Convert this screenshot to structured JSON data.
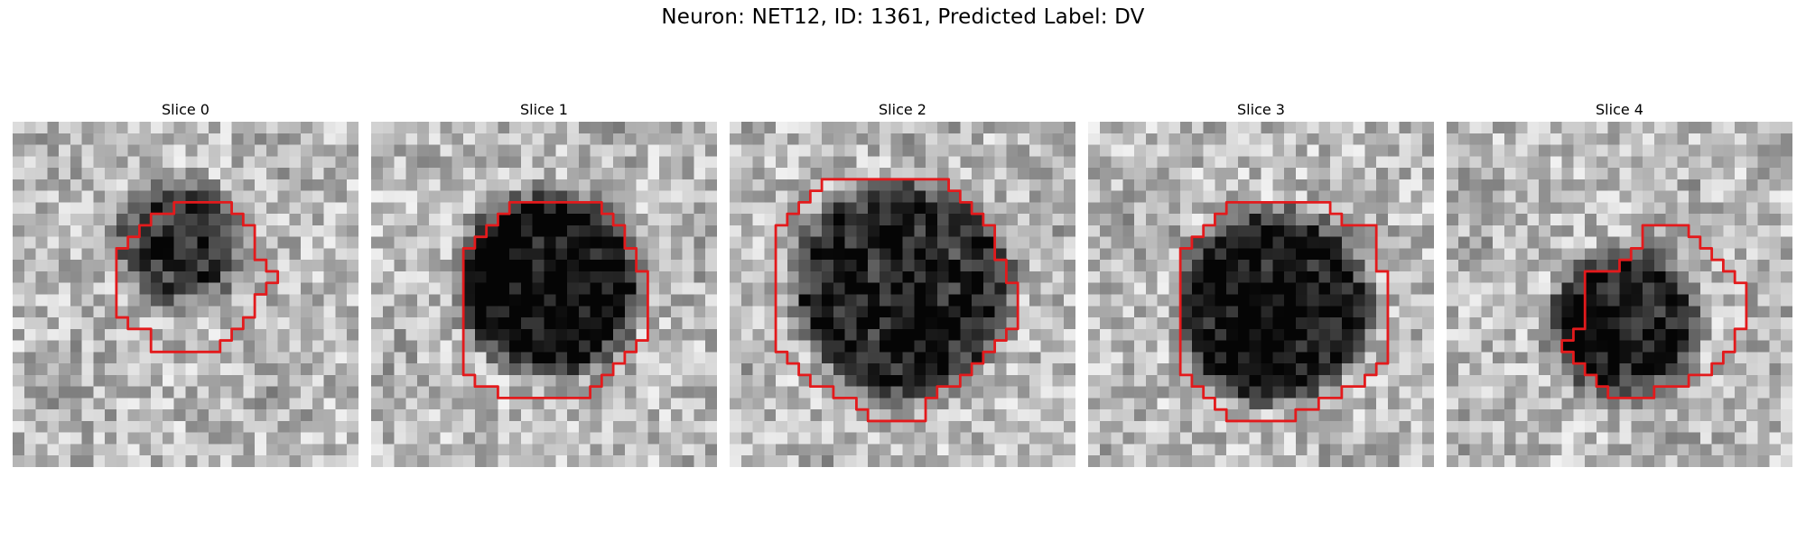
{
  "figure": {
    "title": "Neuron: NET12, ID: 1361, Predicted Label: DV"
  },
  "colormap": "gray",
  "contour_color": "#e31a1c",
  "grid_size": 30,
  "panels": [
    {
      "title": "Slice 0",
      "blob": {
        "center": [
          14.5,
          10.5
        ],
        "radius": 5.5,
        "darkness": 0.5
      },
      "contour": [
        [
          14,
          7
        ],
        [
          19,
          7
        ],
        [
          19,
          8
        ],
        [
          20,
          8
        ],
        [
          20,
          9
        ],
        [
          21,
          9
        ],
        [
          21,
          12
        ],
        [
          22,
          12
        ],
        [
          22,
          13
        ],
        [
          23,
          13
        ],
        [
          23,
          14
        ],
        [
          22,
          14
        ],
        [
          22,
          15
        ],
        [
          21,
          15
        ],
        [
          21,
          17
        ],
        [
          20,
          17
        ],
        [
          20,
          18
        ],
        [
          19,
          18
        ],
        [
          19,
          19
        ],
        [
          18,
          19
        ],
        [
          18,
          20
        ],
        [
          12,
          20
        ],
        [
          12,
          18
        ],
        [
          10,
          18
        ],
        [
          10,
          17
        ],
        [
          9,
          17
        ],
        [
          9,
          11
        ],
        [
          10,
          11
        ],
        [
          10,
          10
        ],
        [
          11,
          10
        ],
        [
          11,
          9
        ],
        [
          12,
          9
        ],
        [
          12,
          8
        ],
        [
          14,
          8
        ]
      ]
    },
    {
      "title": "Slice 1",
      "blob": {
        "center": [
          15.5,
          14.0
        ],
        "radius": 8.0,
        "darkness": 0.72
      },
      "contour": [
        [
          12,
          7
        ],
        [
          20,
          7
        ],
        [
          20,
          8
        ],
        [
          21,
          8
        ],
        [
          21,
          9
        ],
        [
          22,
          9
        ],
        [
          22,
          11
        ],
        [
          23,
          11
        ],
        [
          23,
          13
        ],
        [
          24,
          13
        ],
        [
          24,
          19
        ],
        [
          23,
          19
        ],
        [
          23,
          20
        ],
        [
          22,
          20
        ],
        [
          22,
          21
        ],
        [
          21,
          21
        ],
        [
          21,
          22
        ],
        [
          20,
          22
        ],
        [
          20,
          23
        ],
        [
          19,
          23
        ],
        [
          19,
          24
        ],
        [
          11,
          24
        ],
        [
          11,
          23
        ],
        [
          9,
          23
        ],
        [
          9,
          22
        ],
        [
          8,
          22
        ],
        [
          8,
          11
        ],
        [
          9,
          11
        ],
        [
          9,
          10
        ],
        [
          10,
          10
        ],
        [
          10,
          9
        ],
        [
          11,
          9
        ],
        [
          11,
          8
        ],
        [
          12,
          8
        ]
      ]
    },
    {
      "title": "Slice 2",
      "blob": {
        "center": [
          15.0,
          14.5
        ],
        "radius": 9.5,
        "darkness": 0.62
      },
      "contour": [
        [
          8,
          5
        ],
        [
          19,
          5
        ],
        [
          19,
          6
        ],
        [
          20,
          6
        ],
        [
          20,
          7
        ],
        [
          21,
          7
        ],
        [
          21,
          8
        ],
        [
          22,
          8
        ],
        [
          22,
          9
        ],
        [
          23,
          9
        ],
        [
          23,
          12
        ],
        [
          24,
          12
        ],
        [
          24,
          14
        ],
        [
          25,
          14
        ],
        [
          25,
          18
        ],
        [
          24,
          18
        ],
        [
          24,
          19
        ],
        [
          23,
          19
        ],
        [
          23,
          20
        ],
        [
          22,
          20
        ],
        [
          22,
          21
        ],
        [
          21,
          21
        ],
        [
          21,
          22
        ],
        [
          20,
          22
        ],
        [
          20,
          23
        ],
        [
          18,
          23
        ],
        [
          18,
          24
        ],
        [
          17,
          24
        ],
        [
          17,
          26
        ],
        [
          12,
          26
        ],
        [
          12,
          25
        ],
        [
          11,
          25
        ],
        [
          11,
          24
        ],
        [
          9,
          24
        ],
        [
          9,
          23
        ],
        [
          7,
          23
        ],
        [
          7,
          22
        ],
        [
          6,
          22
        ],
        [
          6,
          21
        ],
        [
          5,
          21
        ],
        [
          5,
          20
        ],
        [
          4,
          20
        ],
        [
          4,
          9
        ],
        [
          5,
          9
        ],
        [
          5,
          8
        ],
        [
          6,
          8
        ],
        [
          6,
          7
        ],
        [
          7,
          7
        ],
        [
          7,
          6
        ],
        [
          8,
          6
        ]
      ]
    },
    {
      "title": "Slice 3",
      "blob": {
        "center": [
          16.0,
          16.0
        ],
        "radius": 8.5,
        "darkness": 0.66
      },
      "contour": [
        [
          12,
          7
        ],
        [
          21,
          7
        ],
        [
          21,
          8
        ],
        [
          22,
          8
        ],
        [
          22,
          9
        ],
        [
          25,
          9
        ],
        [
          25,
          13
        ],
        [
          26,
          13
        ],
        [
          26,
          21
        ],
        [
          25,
          21
        ],
        [
          25,
          22
        ],
        [
          24,
          22
        ],
        [
          24,
          23
        ],
        [
          22,
          23
        ],
        [
          22,
          24
        ],
        [
          20,
          24
        ],
        [
          20,
          25
        ],
        [
          18,
          25
        ],
        [
          18,
          26
        ],
        [
          12,
          26
        ],
        [
          12,
          25
        ],
        [
          11,
          25
        ],
        [
          11,
          24
        ],
        [
          10,
          24
        ],
        [
          10,
          23
        ],
        [
          9,
          23
        ],
        [
          9,
          22
        ],
        [
          8,
          22
        ],
        [
          8,
          11
        ],
        [
          9,
          11
        ],
        [
          9,
          10
        ],
        [
          10,
          10
        ],
        [
          10,
          9
        ],
        [
          11,
          9
        ],
        [
          11,
          8
        ],
        [
          12,
          8
        ]
      ]
    },
    {
      "title": "Slice 4",
      "blob": {
        "center": [
          15.5,
          17.5
        ],
        "radius": 6.5,
        "darkness": 0.62
      },
      "contour": [
        [
          17,
          9
        ],
        [
          21,
          9
        ],
        [
          21,
          10
        ],
        [
          22,
          10
        ],
        [
          22,
          11
        ],
        [
          23,
          11
        ],
        [
          23,
          12
        ],
        [
          24,
          12
        ],
        [
          24,
          13
        ],
        [
          25,
          13
        ],
        [
          25,
          14
        ],
        [
          26,
          14
        ],
        [
          26,
          18
        ],
        [
          25,
          18
        ],
        [
          25,
          20
        ],
        [
          24,
          20
        ],
        [
          24,
          21
        ],
        [
          23,
          21
        ],
        [
          23,
          22
        ],
        [
          21,
          22
        ],
        [
          21,
          23
        ],
        [
          18,
          23
        ],
        [
          18,
          24
        ],
        [
          14,
          24
        ],
        [
          14,
          23
        ],
        [
          13,
          23
        ],
        [
          13,
          22
        ],
        [
          12,
          22
        ],
        [
          12,
          21
        ],
        [
          11,
          21
        ],
        [
          11,
          20
        ],
        [
          10,
          20
        ],
        [
          10,
          19
        ],
        [
          11,
          19
        ],
        [
          11,
          18
        ],
        [
          12,
          18
        ],
        [
          12,
          13
        ],
        [
          15,
          13
        ],
        [
          15,
          12
        ],
        [
          16,
          12
        ],
        [
          16,
          11
        ],
        [
          17,
          11
        ]
      ]
    }
  ]
}
